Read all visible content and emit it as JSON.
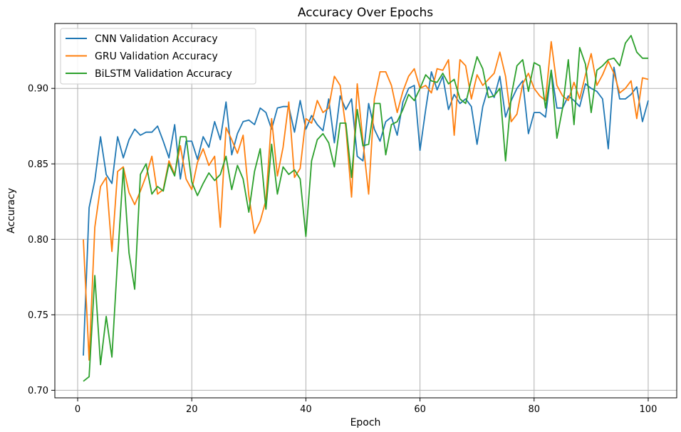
{
  "chart_data": {
    "type": "line",
    "title": "Accuracy Over Epochs",
    "xlabel": "Epoch",
    "ylabel": "Accuracy",
    "xlim": [
      -4,
      105
    ],
    "ylim": [
      0.695,
      0.943
    ],
    "xticks": [
      0,
      20,
      40,
      60,
      80,
      100
    ],
    "xtick_labels": [
      "0",
      "20",
      "40",
      "60",
      "80",
      "100"
    ],
    "yticks": [
      0.7,
      0.75,
      0.8,
      0.85,
      0.9
    ],
    "ytick_labels": [
      "0.70",
      "0.75",
      "0.80",
      "0.85",
      "0.90"
    ],
    "grid": true,
    "legend_position": "top-left",
    "x": [
      1,
      2,
      3,
      4,
      5,
      6,
      7,
      8,
      9,
      10,
      11,
      12,
      13,
      14,
      15,
      16,
      17,
      18,
      19,
      20,
      21,
      22,
      23,
      24,
      25,
      26,
      27,
      28,
      29,
      30,
      31,
      32,
      33,
      34,
      35,
      36,
      37,
      38,
      39,
      40,
      41,
      42,
      43,
      44,
      45,
      46,
      47,
      48,
      49,
      50,
      51,
      52,
      53,
      54,
      55,
      56,
      57,
      58,
      59,
      60,
      61,
      62,
      63,
      64,
      65,
      66,
      67,
      68,
      69,
      70,
      71,
      72,
      73,
      74,
      75,
      76,
      77,
      78,
      79,
      80,
      81,
      82,
      83,
      84,
      85,
      86,
      87,
      88,
      89,
      90,
      91,
      92,
      93,
      94,
      95,
      96,
      97,
      98,
      99,
      100
    ],
    "series": [
      {
        "name": "CNN Validation Accuracy",
        "color": "#1f77b4",
        "values": [
          0.723,
          0.821,
          0.839,
          0.868,
          0.843,
          0.837,
          0.868,
          0.854,
          0.866,
          0.873,
          0.869,
          0.871,
          0.871,
          0.875,
          0.865,
          0.854,
          0.876,
          0.84,
          0.865,
          0.865,
          0.853,
          0.868,
          0.861,
          0.878,
          0.866,
          0.891,
          0.856,
          0.87,
          0.878,
          0.879,
          0.876,
          0.887,
          0.884,
          0.873,
          0.887,
          0.888,
          0.888,
          0.871,
          0.892,
          0.873,
          0.882,
          0.876,
          0.872,
          0.893,
          0.864,
          0.895,
          0.886,
          0.893,
          0.855,
          0.852,
          0.89,
          0.873,
          0.865,
          0.878,
          0.881,
          0.869,
          0.891,
          0.9,
          0.902,
          0.859,
          0.886,
          0.911,
          0.899,
          0.908,
          0.886,
          0.896,
          0.89,
          0.893,
          0.888,
          0.863,
          0.888,
          0.901,
          0.894,
          0.908,
          0.881,
          0.892,
          0.9,
          0.905,
          0.87,
          0.884,
          0.884,
          0.881,
          0.912,
          0.887,
          0.887,
          0.895,
          0.892,
          0.888,
          0.903,
          0.9,
          0.898,
          0.893,
          0.86,
          0.914,
          0.893,
          0.893,
          0.896,
          0.901,
          0.878,
          0.892
        ]
      },
      {
        "name": "GRU Validation Accuracy",
        "color": "#ff7f0e",
        "values": [
          0.8,
          0.72,
          0.808,
          0.835,
          0.841,
          0.792,
          0.845,
          0.848,
          0.831,
          0.823,
          0.832,
          0.842,
          0.855,
          0.83,
          0.833,
          0.852,
          0.843,
          0.862,
          0.84,
          0.833,
          0.851,
          0.86,
          0.849,
          0.855,
          0.808,
          0.874,
          0.866,
          0.857,
          0.869,
          0.829,
          0.804,
          0.812,
          0.826,
          0.88,
          0.842,
          0.861,
          0.891,
          0.841,
          0.847,
          0.88,
          0.877,
          0.892,
          0.884,
          0.887,
          0.908,
          0.902,
          0.874,
          0.828,
          0.903,
          0.865,
          0.83,
          0.893,
          0.911,
          0.911,
          0.902,
          0.884,
          0.898,
          0.908,
          0.913,
          0.9,
          0.902,
          0.897,
          0.913,
          0.912,
          0.919,
          0.869,
          0.919,
          0.915,
          0.893,
          0.909,
          0.902,
          0.906,
          0.91,
          0.924,
          0.908,
          0.878,
          0.883,
          0.903,
          0.91,
          0.9,
          0.895,
          0.892,
          0.931,
          0.902,
          0.895,
          0.892,
          0.904,
          0.893,
          0.909,
          0.923,
          0.902,
          0.909,
          0.918,
          0.91,
          0.897,
          0.9,
          0.905,
          0.88,
          0.907,
          0.906
        ]
      },
      {
        "name": "BiLSTM Validation Accuracy",
        "color": "#2ca02c",
        "values": [
          0.706,
          0.709,
          0.776,
          0.717,
          0.749,
          0.722,
          0.787,
          0.847,
          0.791,
          0.767,
          0.843,
          0.85,
          0.83,
          0.835,
          0.832,
          0.85,
          0.842,
          0.868,
          0.868,
          0.838,
          0.829,
          0.837,
          0.844,
          0.839,
          0.843,
          0.855,
          0.833,
          0.849,
          0.84,
          0.818,
          0.845,
          0.86,
          0.82,
          0.863,
          0.83,
          0.848,
          0.843,
          0.846,
          0.84,
          0.802,
          0.852,
          0.866,
          0.87,
          0.864,
          0.848,
          0.877,
          0.877,
          0.841,
          0.886,
          0.862,
          0.863,
          0.89,
          0.89,
          0.856,
          0.876,
          0.878,
          0.886,
          0.896,
          0.892,
          0.9,
          0.909,
          0.905,
          0.904,
          0.91,
          0.903,
          0.906,
          0.893,
          0.89,
          0.906,
          0.921,
          0.913,
          0.894,
          0.895,
          0.9,
          0.852,
          0.895,
          0.915,
          0.919,
          0.898,
          0.917,
          0.915,
          0.887,
          0.912,
          0.867,
          0.887,
          0.919,
          0.876,
          0.927,
          0.916,
          0.884,
          0.912,
          0.915,
          0.919,
          0.92,
          0.915,
          0.93,
          0.935,
          0.924,
          0.92,
          0.92
        ]
      }
    ]
  }
}
